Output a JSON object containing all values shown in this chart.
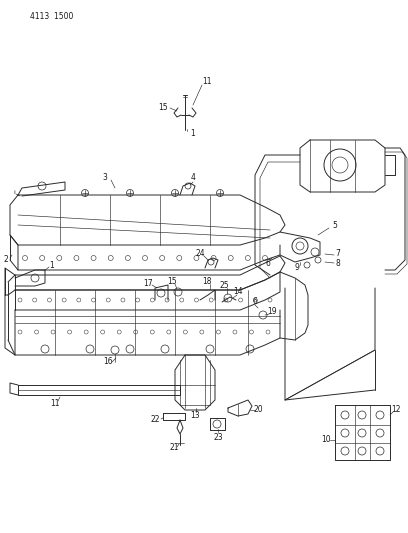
{
  "header_code": "4113  1500",
  "background_color": "#ffffff",
  "line_color": "#2a2a2a",
  "text_color": "#1a1a1a",
  "figsize": [
    4.08,
    5.33
  ],
  "dpi": 100
}
